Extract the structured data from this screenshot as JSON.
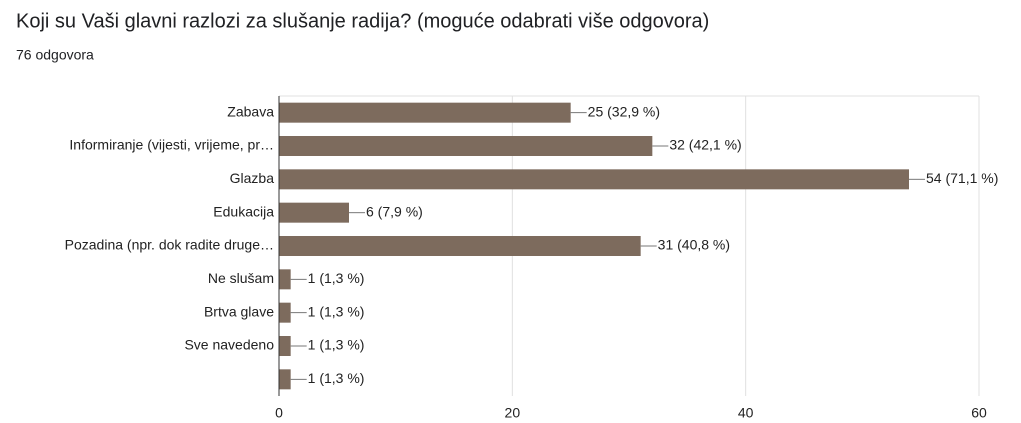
{
  "chart_data": {
    "type": "bar",
    "orientation": "horizontal",
    "title": "Koji su Vaši glavni razlozi za slušanje radija? (moguće odabrati više odgovora)",
    "subtitle": "76 odgovora",
    "categories": [
      "Zabava",
      "Informiranje (vijesti, vrijeme, pr…",
      "Glazba",
      "Edukacija",
      "Pozadina (npr. dok radite druge…",
      "Ne slušam",
      "Brtva glave",
      "Sve navedeno",
      null
    ],
    "values": [
      25,
      32,
      54,
      6,
      31,
      1,
      1,
      1,
      1
    ],
    "value_labels": [
      "25 (32,9 %)",
      "32 (42,1 %)",
      "54 (71,1 %)",
      "6 (7,9 %)",
      "31 (40,8 %)",
      "1 (1,3 %)",
      "1 (1,3 %)",
      "1 (1,3 %)",
      "1 (1,3 %)"
    ],
    "color": "#7d6b5d",
    "xlim": [
      0,
      60
    ],
    "xticks": [
      0,
      20,
      40,
      60
    ],
    "grid": true
  }
}
